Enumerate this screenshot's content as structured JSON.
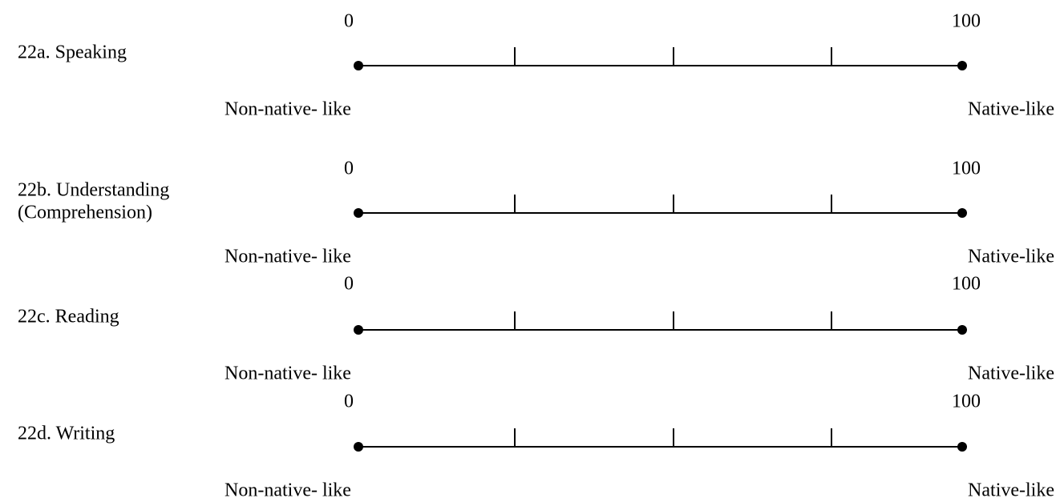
{
  "items": [
    {
      "label_lines": [
        "22a. Speaking"
      ],
      "min": 0,
      "max": 100,
      "left_anchor": "Non-native- like",
      "right_anchor": "Native-like"
    },
    {
      "label_lines": [
        "22b. Understanding",
        "(Comprehension)"
      ],
      "min": 0,
      "max": 100,
      "left_anchor": "Non-native- like",
      "right_anchor": "Native-like"
    },
    {
      "label_lines": [
        "22c. Reading"
      ],
      "min": 0,
      "max": 100,
      "left_anchor": "Non-native- like",
      "right_anchor": "Native-like"
    },
    {
      "label_lines": [
        "22d. Writing"
      ],
      "min": 0,
      "max": 100,
      "left_anchor": "Non-native- like",
      "right_anchor": "Native-like"
    }
  ]
}
